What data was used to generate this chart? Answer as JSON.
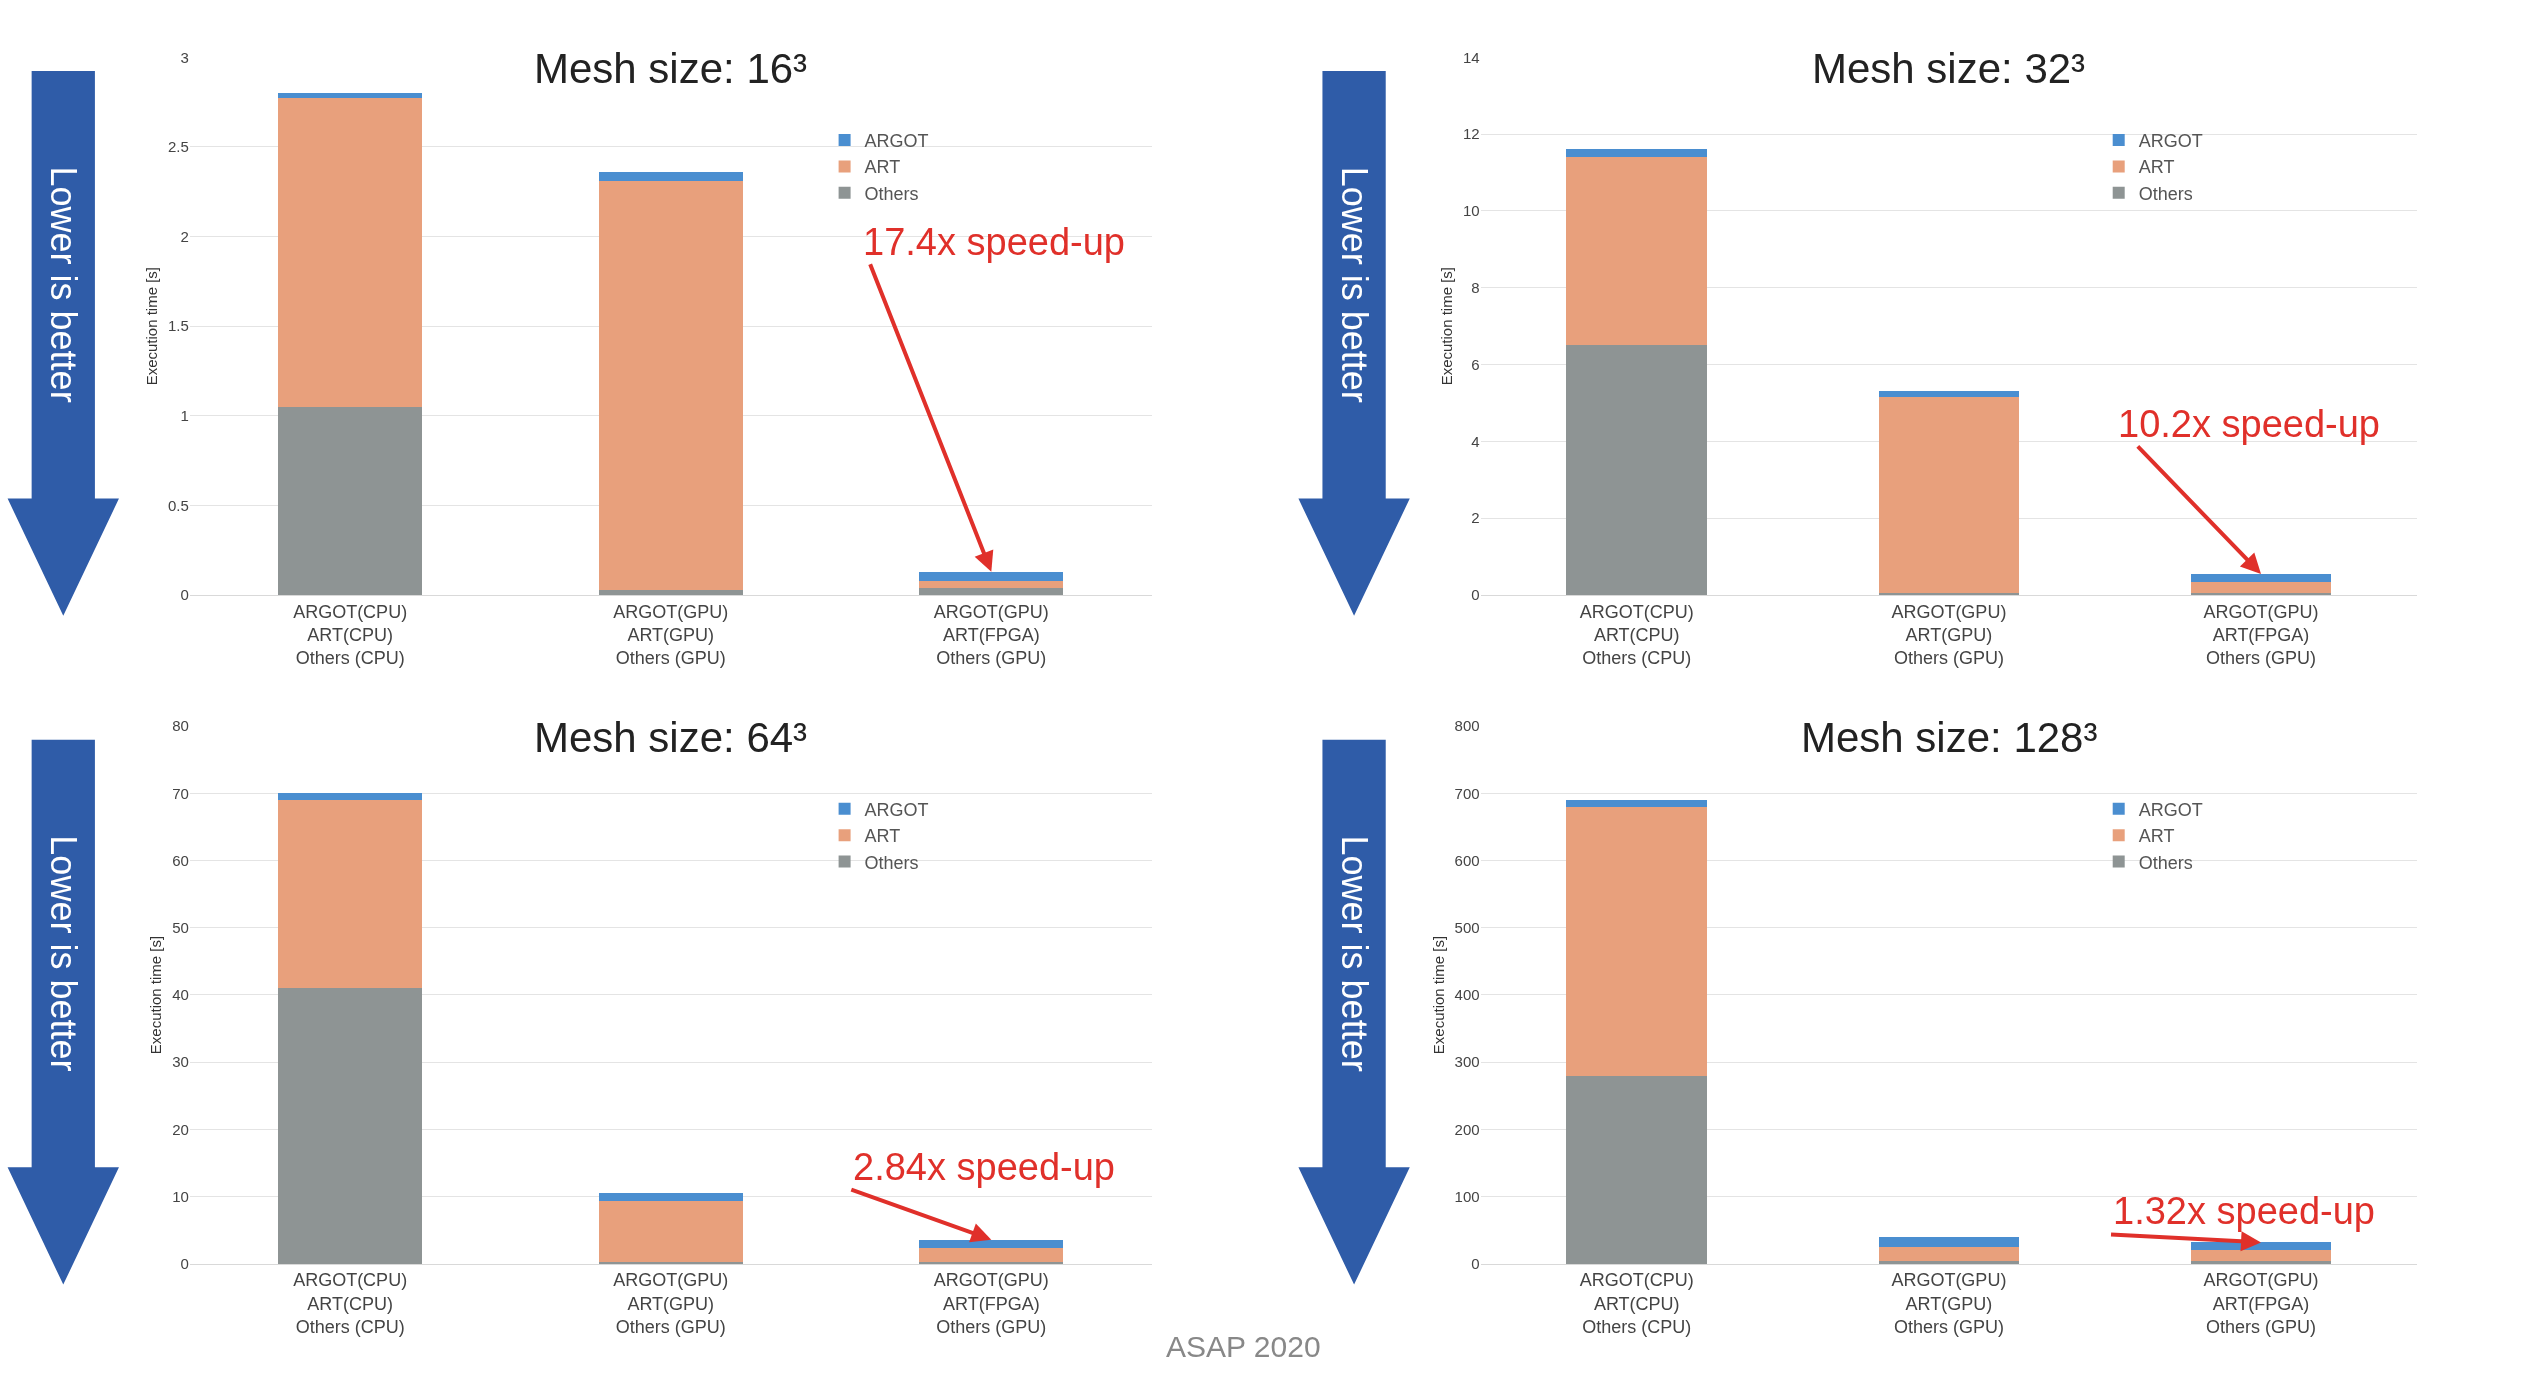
{
  "chart_data": [
    {
      "type": "bar",
      "title": "Mesh size: 16³",
      "ylabel": "Execution time [s]",
      "categories": [
        "ARGOT(CPU)\nART(CPU)\nOthers (CPU)",
        "ARGOT(GPU)\nART(GPU)\nOthers (GPU)",
        "ARGOT(GPU)\nART(FPGA)\nOthers (GPU)"
      ],
      "stacked": true,
      "grid": "y",
      "legend": "top right",
      "ylim": [
        0,
        3
      ],
      "yticks": [
        0,
        0.5,
        1,
        1.5,
        2,
        2.5,
        3
      ],
      "series": [
        {
          "name": "Others",
          "color": "#8e9494",
          "values": [
            1.05,
            0.03,
            0.04
          ]
        },
        {
          "name": "ART",
          "color": "#e8a07c",
          "values": [
            1.72,
            2.28,
            0.04
          ]
        },
        {
          "name": "ARGOT",
          "color": "#4a8ed0",
          "values": [
            0.03,
            0.05,
            0.05
          ]
        }
      ],
      "annotations": [
        "Lower is better",
        {
          "text": "17.4x speed-up",
          "x": "ARGOT(GPU)\nART(FPGA)\nOthers (GPU)",
          "y": 0.13
        }
      ]
    },
    {
      "type": "bar",
      "title": "Mesh size: 32³",
      "ylabel": "Execution time [s]",
      "categories": [
        "ARGOT(CPU)\nART(CPU)\nOthers (CPU)",
        "ARGOT(GPU)\nART(GPU)\nOthers (GPU)",
        "ARGOT(GPU)\nART(FPGA)\nOthers (GPU)"
      ],
      "stacked": true,
      "grid": "y",
      "legend": "top right",
      "ylim": [
        0,
        14
      ],
      "yticks": [
        0,
        2,
        4,
        6,
        8,
        10,
        12,
        14
      ],
      "series": [
        {
          "name": "Others",
          "color": "#8e9494",
          "values": [
            6.5,
            0.05,
            0.05
          ]
        },
        {
          "name": "ART",
          "color": "#e8a07c",
          "values": [
            4.9,
            5.1,
            0.3
          ]
        },
        {
          "name": "ARGOT",
          "color": "#4a8ed0",
          "values": [
            0.2,
            0.15,
            0.2
          ]
        }
      ],
      "annotations": [
        "Lower is better",
        {
          "text": "10.2x speed-up",
          "x": "ARGOT(GPU)\nART(FPGA)\nOthers (GPU)",
          "y": 0.55
        }
      ]
    },
    {
      "type": "bar",
      "title": "Mesh size: 64³",
      "ylabel": "Execution time [s]",
      "categories": [
        "ARGOT(CPU)\nART(CPU)\nOthers (CPU)",
        "ARGOT(GPU)\nART(GPU)\nOthers (GPU)",
        "ARGOT(GPU)\nART(FPGA)\nOthers (GPU)"
      ],
      "stacked": true,
      "grid": "y",
      "legend": "top right",
      "ylim": [
        0,
        80
      ],
      "yticks": [
        0,
        10,
        20,
        30,
        40,
        50,
        60,
        70,
        80
      ],
      "series": [
        {
          "name": "Others",
          "color": "#8e9494",
          "values": [
            41,
            0.3,
            0.3
          ]
        },
        {
          "name": "ART",
          "color": "#e8a07c",
          "values": [
            28,
            9,
            2
          ]
        },
        {
          "name": "ARGOT",
          "color": "#4a8ed0",
          "values": [
            1,
            1.2,
            1.3
          ]
        }
      ],
      "annotations": [
        "Lower is better",
        {
          "text": "2.84x speed-up",
          "x": "ARGOT(GPU)\nART(FPGA)\nOthers (GPU)",
          "y": 3.6
        },
        "ASAP 2020"
      ]
    },
    {
      "type": "bar",
      "title": "Mesh size: 128³",
      "ylabel": "Execution time [s]",
      "categories": [
        "ARGOT(CPU)\nART(CPU)\nOthers (CPU)",
        "ARGOT(GPU)\nART(GPU)\nOthers (GPU)",
        "ARGOT(GPU)\nART(FPGA)\nOthers (GPU)"
      ],
      "stacked": true,
      "grid": "y",
      "legend": "top right",
      "ylim": [
        0,
        800
      ],
      "yticks": [
        0,
        100,
        200,
        300,
        400,
        500,
        600,
        700,
        800
      ],
      "series": [
        {
          "name": "Others",
          "color": "#8e9494",
          "values": [
            280,
            5,
            5
          ]
        },
        {
          "name": "ART",
          "color": "#e8a07c",
          "values": [
            400,
            20,
            15
          ]
        },
        {
          "name": "ARGOT",
          "color": "#4a8ed0",
          "values": [
            10,
            15,
            12
          ]
        }
      ],
      "annotations": [
        "Lower is better",
        {
          "text": "1.32x speed-up",
          "x": "ARGOT(GPU)\nART(FPGA)\nOthers (GPU)",
          "y": 32
        }
      ]
    }
  ]
}
